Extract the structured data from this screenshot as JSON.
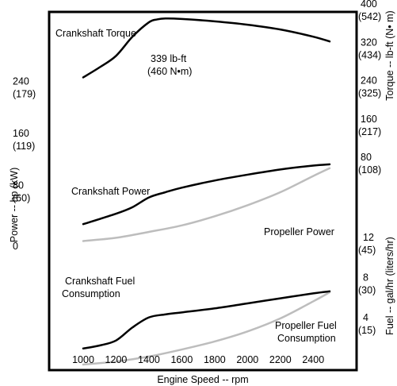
{
  "chart_data": {
    "type": "line",
    "x_axis": {
      "label": "Engine Speed -- rpm",
      "range": [
        850,
        2650
      ],
      "ticks": [
        1000,
        1200,
        1400,
        1600,
        1800,
        2000,
        2200,
        2400
      ]
    },
    "torque_axis": {
      "label": "Torque -- lb-ft (N• m)",
      "ticks": [
        {
          "value": 400,
          "label": "400",
          "sublabel": "(542)"
        },
        {
          "value": 320,
          "label": "320",
          "sublabel": "(434)"
        },
        {
          "value": 240,
          "label": "240",
          "sublabel": "(325)"
        },
        {
          "value": 160,
          "label": "160",
          "sublabel": "(217)"
        },
        {
          "value": 80,
          "label": "80",
          "sublabel": "(108)"
        }
      ]
    },
    "power_axis": {
      "label": "Power -- hp (kW)",
      "ticks": [
        {
          "value": 240,
          "label": "240",
          "sublabel": "(179)"
        },
        {
          "value": 160,
          "label": "160",
          "sublabel": "(119)"
        },
        {
          "value": 80,
          "label": "80",
          "sublabel": "(60)"
        },
        {
          "value": 0,
          "label": "0",
          "sublabel": ""
        }
      ]
    },
    "fuel_axis": {
      "label": "Fuel -- gal/hr (liters/hr)",
      "ticks": [
        {
          "value": 12,
          "label": "12",
          "sublabel": "(45)"
        },
        {
          "value": 8,
          "label": "8",
          "sublabel": "(30)"
        },
        {
          "value": 4,
          "label": "4",
          "sublabel": "(15)"
        }
      ]
    },
    "series": [
      {
        "name": "Crankshaft Torque",
        "axis": "torque",
        "color": "#000000",
        "x": [
          1000,
          1100,
          1200,
          1300,
          1400,
          1450,
          1500,
          1600,
          1800,
          2000,
          2200,
          2400,
          2500
        ],
        "y": [
          265,
          286,
          310,
          350,
          380,
          386,
          388,
          387,
          382,
          375,
          365,
          350,
          340
        ]
      },
      {
        "name": "Crankshaft Power",
        "axis": "power",
        "color": "#000000",
        "x": [
          1000,
          1200,
          1300,
          1400,
          1500,
          1600,
          1800,
          2000,
          2200,
          2400,
          2500
        ],
        "y": [
          34,
          50,
          60,
          75,
          83,
          90,
          101,
          110,
          118,
          124,
          126
        ]
      },
      {
        "name": "Propeller Power",
        "axis": "power",
        "color": "#bdbdbd",
        "x": [
          1000,
          1200,
          1400,
          1600,
          1800,
          2000,
          2200,
          2400,
          2500
        ],
        "y": [
          8,
          13,
          22,
          32,
          46,
          63,
          83,
          108,
          120
        ]
      },
      {
        "name": "Crankshaft Fuel Consumption",
        "axis": "fuel",
        "color": "#000000",
        "x": [
          1000,
          1100,
          1200,
          1300,
          1400,
          1500,
          1600,
          1800,
          2000,
          2200,
          2400,
          2500
        ],
        "y": [
          1.8,
          2.1,
          2.6,
          3.9,
          4.9,
          5.2,
          5.4,
          5.8,
          6.3,
          6.8,
          7.3,
          7.5
        ]
      },
      {
        "name": "Propeller Fuel Consumption",
        "axis": "fuel",
        "color": "#bdbdbd",
        "x": [
          1000,
          1200,
          1400,
          1600,
          1800,
          2000,
          2200,
          2400,
          2500
        ],
        "y": [
          0.2,
          0.5,
          1.0,
          1.7,
          2.5,
          3.5,
          4.8,
          6.5,
          7.4
        ]
      }
    ],
    "annotations": {
      "torque_title": "Crankshaft Torque",
      "torque_peak_line1": "339 lb-ft",
      "torque_peak_line2": "(460 N•m)",
      "crank_power": "Crankshaft Power",
      "prop_power": "Propeller Power",
      "crank_fuel_line1": "Crankshaft Fuel",
      "crank_fuel_line2": "Consumption",
      "prop_fuel_line1": "Propeller Fuel",
      "prop_fuel_line2": "Consumption"
    },
    "grid": false
  }
}
